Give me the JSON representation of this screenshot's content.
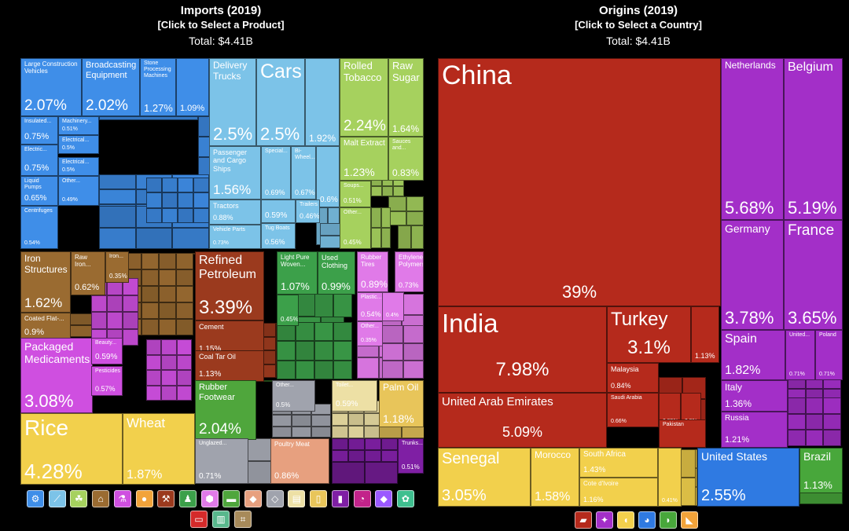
{
  "imports_header": {
    "title": "Imports (2019)",
    "subtitle": "[Click to Select a Product]",
    "total": "Total: $4.41B"
  },
  "origins_header": {
    "title": "Origins (2019)",
    "subtitle": "[Click to Select a Country]",
    "total": "Total: $4.41B"
  },
  "colors": {
    "machines": "#3f8ee8",
    "transportation": "#7cc3e8",
    "vegetable_products": "#a6d15e",
    "foodstuffs": "#a6d15e",
    "metals": "#9a6b31",
    "mineral_products": "#9b3a1e",
    "chemical_products": "#cf4fe0",
    "textiles": "#3ca04a",
    "plastics": "#e07ae8",
    "footwear": "#4fa63c",
    "stone": "#a0a3ad",
    "paper": "#ede0a5",
    "fats": "#e8c55a",
    "grain": "#f2d04c",
    "animal_products": "#e7a07f",
    "misc": "#7f1fa4",
    "asia": "#b52a1c",
    "europe": "#a32fc8",
    "africa": "#f2d04c",
    "north_america": "#2f7ae2",
    "south_america": "#48a73b"
  },
  "chart_data": [
    {
      "type": "treemap",
      "title": "Imports (2019)",
      "total": "$4.41B",
      "items": [
        {
          "name": "Large Construction Vehicles",
          "value": 2.07,
          "group": "machines"
        },
        {
          "name": "Broadcasting Equipment",
          "value": 2.02,
          "group": "machines"
        },
        {
          "name": "Stone Processing Machines",
          "value": 1.27,
          "group": "machines"
        },
        {
          "name": "",
          "value": 1.09,
          "group": "machines"
        },
        {
          "name": "Insulated...",
          "value": 0.75,
          "group": "machines"
        },
        {
          "name": "Machinery...",
          "value": 0.51,
          "group": "machines"
        },
        {
          "name": "Electric...",
          "value": 0.75,
          "group": "machines"
        },
        {
          "name": "Electrical...",
          "value": 0.5,
          "group": "machines"
        },
        {
          "name": "Electrical...",
          "value": 0.5,
          "group": "machines"
        },
        {
          "name": "Liquid Pumps",
          "value": 0.65,
          "group": "machines"
        },
        {
          "name": "Other...",
          "value": 0.49,
          "group": "machines"
        },
        {
          "name": "Centrifuges",
          "value": 0.54,
          "group": "machines"
        },
        {
          "name": "Delivery Trucks",
          "value": 2.5,
          "group": "transportation"
        },
        {
          "name": "Cars",
          "value": 2.5,
          "group": "transportation"
        },
        {
          "name": "",
          "value": 1.92,
          "group": "transportation"
        },
        {
          "name": "Passenger and Cargo Ships",
          "value": 1.56,
          "group": "transportation"
        },
        {
          "name": "Special...",
          "value": 0.69,
          "group": "transportation"
        },
        {
          "name": "Bi-Wheel...",
          "value": 0.67,
          "group": "transportation"
        },
        {
          "name": "",
          "value": 0.6,
          "group": "transportation"
        },
        {
          "name": "Tractors",
          "value": 0.88,
          "group": "transportation"
        },
        {
          "name": "Vehicle Parts",
          "value": 0.73,
          "group": "transportation"
        },
        {
          "name": "",
          "value": 0.59,
          "group": "transportation"
        },
        {
          "name": "Trailers",
          "value": 0.46,
          "group": "transportation"
        },
        {
          "name": "Tug Boats",
          "value": 0.56,
          "group": "transportation"
        },
        {
          "name": "Rolled Tobacco",
          "value": 2.24,
          "group": "foodstuffs"
        },
        {
          "name": "Raw Sugar",
          "value": 1.64,
          "group": "foodstuffs"
        },
        {
          "name": "Malt Extract",
          "value": 1.23,
          "group": "foodstuffs"
        },
        {
          "name": "Sauces and...",
          "value": 0.83,
          "group": "foodstuffs"
        },
        {
          "name": "Soups...",
          "value": 0.51,
          "group": "foodstuffs"
        },
        {
          "name": "Other...",
          "value": 0.45,
          "group": "foodstuffs"
        },
        {
          "name": "Iron Structures",
          "value": 1.62,
          "group": "metals"
        },
        {
          "name": "Raw Iron...",
          "value": 0.62,
          "group": "metals"
        },
        {
          "name": "Iron...",
          "value": 0.35,
          "group": "metals"
        },
        {
          "name": "Coated Flat-...",
          "value": 0.9,
          "group": "metals"
        },
        {
          "name": "Refined Petroleum",
          "value": 3.39,
          "group": "mineral_products"
        },
        {
          "name": "Cement",
          "value": 1.15,
          "group": "mineral_products"
        },
        {
          "name": "Coal Tar Oil",
          "value": 1.13,
          "group": "mineral_products"
        },
        {
          "name": "Packaged Medicaments",
          "value": 3.08,
          "group": "chemical_products"
        },
        {
          "name": "Beauty...",
          "value": 0.59,
          "group": "chemical_products"
        },
        {
          "name": "Pesticides",
          "value": 0.57,
          "group": "chemical_products"
        },
        {
          "name": "Light Pure Woven...",
          "value": 1.07,
          "group": "textiles"
        },
        {
          "name": "Used Clothing",
          "value": 0.99,
          "group": "textiles"
        },
        {
          "name": "",
          "value": 0.45,
          "group": "textiles"
        },
        {
          "name": "Rubber Tires",
          "value": 0.89,
          "group": "plastics"
        },
        {
          "name": "Ethylene Polymers",
          "value": 0.73,
          "group": "plastics"
        },
        {
          "name": "Plastic...",
          "value": 0.54,
          "group": "plastics"
        },
        {
          "name": "",
          "value": 0.4,
          "group": "plastics"
        },
        {
          "name": "Other...",
          "value": 0.35,
          "group": "plastics"
        },
        {
          "name": "Rubber Footwear",
          "value": 2.04,
          "group": "footwear"
        },
        {
          "name": "Other...",
          "value": 0.5,
          "group": "stone"
        },
        {
          "name": "Toilet...",
          "value": 0.59,
          "group": "paper"
        },
        {
          "name": "Palm Oil",
          "value": 1.18,
          "group": "fats"
        },
        {
          "name": "Rice",
          "value": 4.28,
          "group": "grain"
        },
        {
          "name": "Wheat",
          "value": 1.87,
          "group": "grain"
        },
        {
          "name": "Unglazed...",
          "value": 0.71,
          "group": "stone"
        },
        {
          "name": "Poultry Meat",
          "value": 0.86,
          "group": "animal_products"
        },
        {
          "name": "Trunks...",
          "value": 0.51,
          "group": "misc"
        }
      ]
    },
    {
      "type": "treemap",
      "title": "Origins (2019)",
      "total": "$4.41B",
      "items": [
        {
          "name": "China",
          "value": 39,
          "group": "asia"
        },
        {
          "name": "India",
          "value": 7.98,
          "group": "asia"
        },
        {
          "name": "United Arab Emirates",
          "value": 5.09,
          "group": "asia"
        },
        {
          "name": "Turkey",
          "value": 3.1,
          "group": "asia"
        },
        {
          "name": "",
          "value": 1.13,
          "group": "asia"
        },
        {
          "name": "Malaysia",
          "value": 0.84,
          "group": "asia"
        },
        {
          "name": "Saudi Arabia",
          "value": 0.66,
          "group": "asia"
        },
        {
          "name": "",
          "value": 0.55,
          "group": "asia"
        },
        {
          "name": "",
          "value": 0.5,
          "group": "asia"
        },
        {
          "name": "Pakistan",
          "value": null,
          "group": "asia"
        },
        {
          "name": "Netherlands",
          "value": 5.68,
          "group": "europe"
        },
        {
          "name": "Belgium",
          "value": 5.19,
          "group": "europe"
        },
        {
          "name": "Germany",
          "value": 3.78,
          "group": "europe"
        },
        {
          "name": "France",
          "value": 3.65,
          "group": "europe"
        },
        {
          "name": "Spain",
          "value": 1.82,
          "group": "europe"
        },
        {
          "name": "United...",
          "value": 0.71,
          "group": "europe"
        },
        {
          "name": "Poland",
          "value": 0.71,
          "group": "europe"
        },
        {
          "name": "Italy",
          "value": 1.36,
          "group": "europe"
        },
        {
          "name": "Russia",
          "value": 1.21,
          "group": "europe"
        },
        {
          "name": "Senegal",
          "value": 3.05,
          "group": "africa"
        },
        {
          "name": "Morocco",
          "value": 1.58,
          "group": "africa"
        },
        {
          "name": "South Africa",
          "value": 1.43,
          "group": "africa"
        },
        {
          "name": "Cote d'Ivoire",
          "value": 1.16,
          "group": "africa"
        },
        {
          "name": "",
          "value": 0.41,
          "group": "africa"
        },
        {
          "name": "United States",
          "value": 2.55,
          "group": "north_america"
        },
        {
          "name": "Brazil",
          "value": 1.13,
          "group": "south_america"
        }
      ]
    }
  ],
  "imports_legend_icons": [
    "machines-icon",
    "transportation-icon",
    "vegetable-products-icon",
    "metals-icon",
    "chemicals-icon",
    "foodstuffs-icon",
    "instruments-icon",
    "textiles-icon",
    "plastics-icon",
    "footwear-icon",
    "animal-products-icon",
    "stone-icon",
    "paper-icon",
    "fats-icon",
    "misc-icon",
    "mineral-products-icon",
    "precious-metals-icon",
    "animal-hides-icon",
    "arts-icon",
    "weapons-icon",
    "wood-icon"
  ],
  "origins_legend_icons": [
    "asia-icon",
    "europe-icon",
    "africa-icon",
    "oceania-icon",
    "south-america-icon",
    "north-america-icon"
  ]
}
